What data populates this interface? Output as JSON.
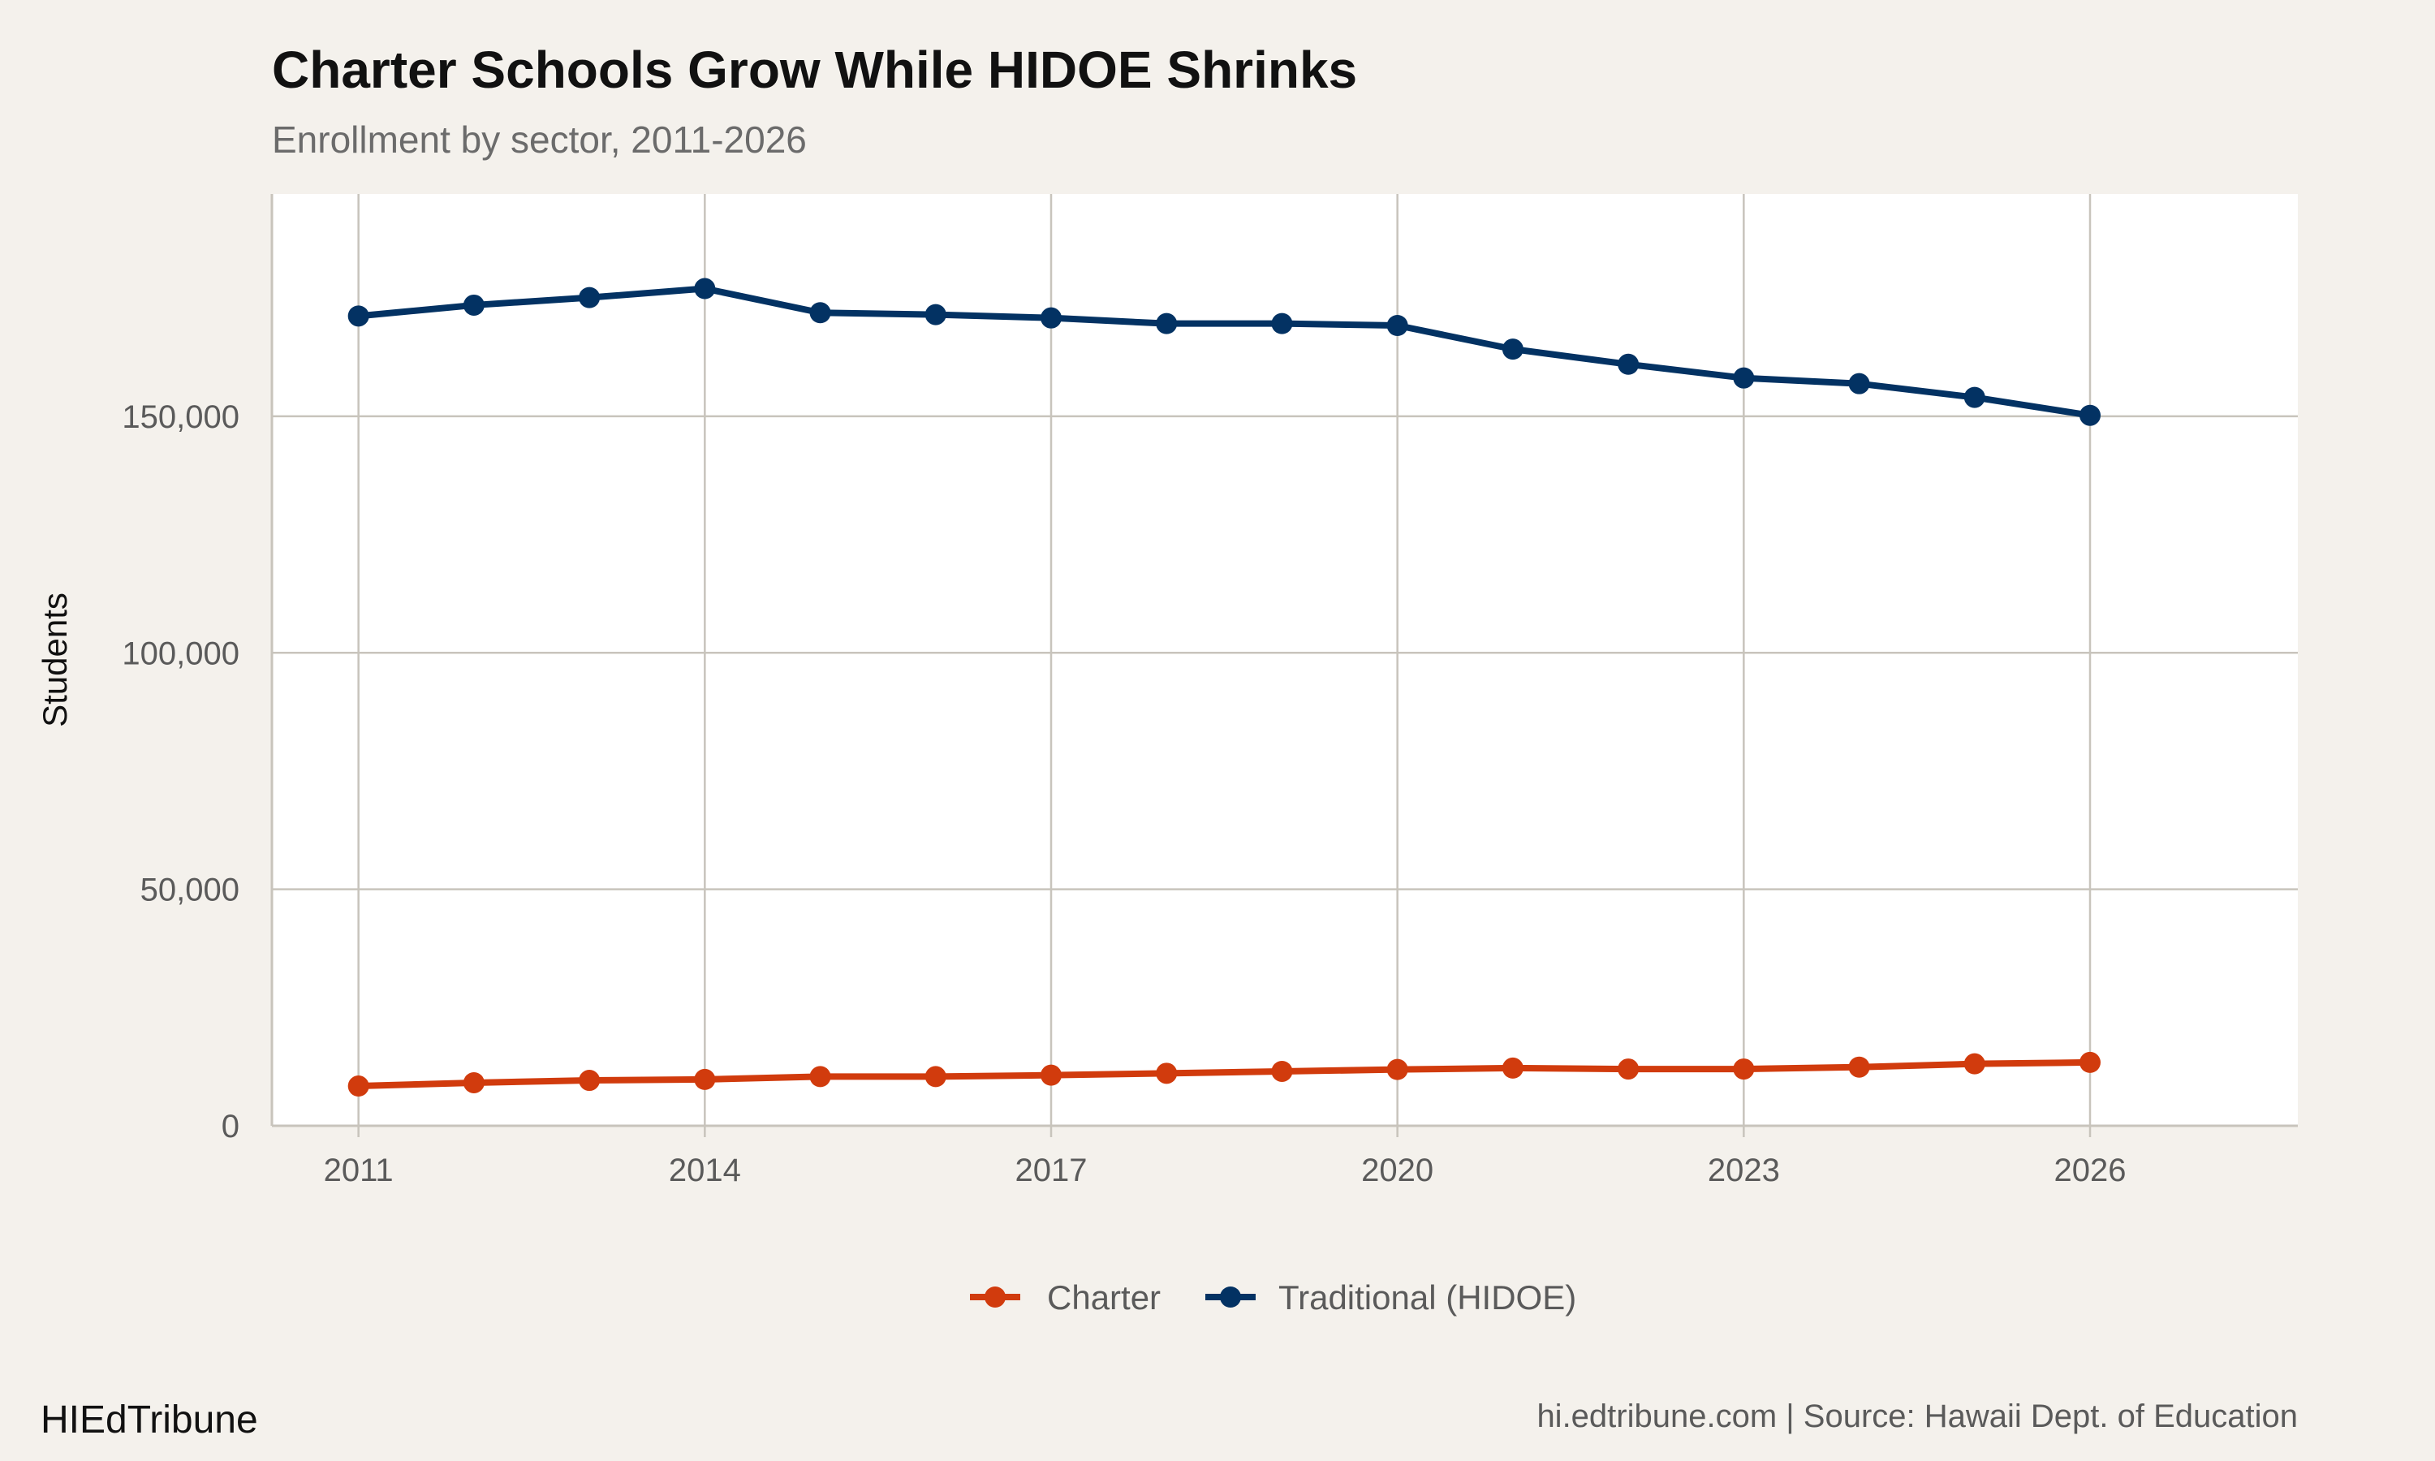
{
  "chart_data": {
    "type": "line",
    "title": "Charter Schools Grow While HIDOE Shrinks",
    "subtitle": "Enrollment by sector, 2011-2026",
    "xlabel": "",
    "ylabel": "Students",
    "x": [
      2011,
      2012,
      2013,
      2014,
      2015,
      2016,
      2017,
      2018,
      2019,
      2020,
      2021,
      2022,
      2023,
      2024,
      2025,
      2026
    ],
    "xticks": [
      "2011",
      "2014",
      "2017",
      "2020",
      "2023",
      "2026"
    ],
    "xtick_values": [
      2011,
      2014,
      2017,
      2020,
      2023,
      2026
    ],
    "yticks": [
      "0",
      "50,000",
      "100,000",
      "150,000"
    ],
    "ytick_values": [
      0,
      50000,
      100000,
      150000
    ],
    "xlim": [
      2010.25,
      2027.8
    ],
    "ylim": [
      0,
      197000
    ],
    "grid": true,
    "legend_position": "bottom",
    "series": [
      {
        "name": "Charter",
        "color": "#d13b0d",
        "values": [
          8400,
          9100,
          9600,
          9800,
          10400,
          10400,
          10700,
          11100,
          11500,
          11900,
          12200,
          12000,
          12000,
          12400,
          13100,
          13400
        ]
      },
      {
        "name": "Traditional (HIDOE)",
        "color": "#033263",
        "values": [
          171200,
          173500,
          175100,
          177000,
          171900,
          171500,
          170800,
          169600,
          169600,
          169200,
          164200,
          161000,
          158100,
          156900,
          154000,
          150200
        ]
      }
    ]
  },
  "footer": {
    "brand": "HIEdTribune",
    "caption": "hi.edtribune.com | Source: Hawaii Dept. of Education"
  },
  "colors": {
    "background": "#f4f1ec",
    "panel": "#ffffff",
    "grid": "#c8c4bc"
  }
}
